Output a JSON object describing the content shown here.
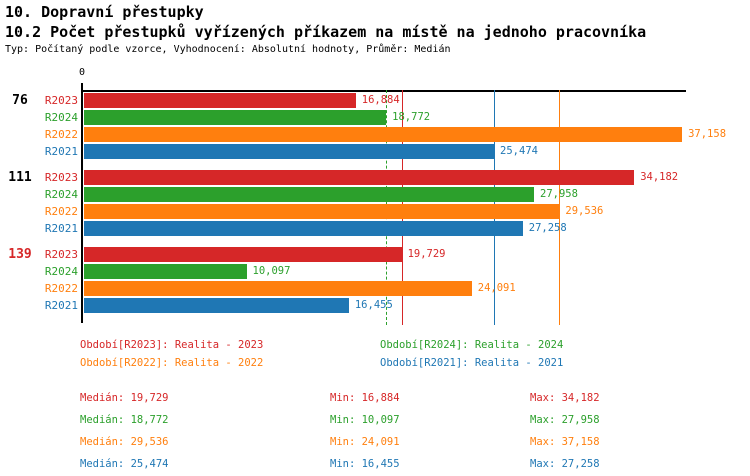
{
  "header": {
    "title": "10. Dopravní přestupky",
    "subtitle": "10.2 Počet přestupků vyřízených příkazem na místě na jednoho pracovníka",
    "meta": "Typ: Počítaný podle vzorce, Vyhodnocení: Absolutní hodnoty, Průměr: Medián"
  },
  "chart_data": {
    "type": "bar",
    "orientation": "horizontal",
    "title": "10.2 Počet přestupků vyřízených příkazem na místě na jednoho pracovníka",
    "x_axis": {
      "origin_label": "0",
      "max": 37400,
      "gridlines": false
    },
    "series_colors": {
      "R2023": "#d62728",
      "R2024": "#2ca02c",
      "R2022": "#ff7f0e",
      "R2021": "#1f77b4"
    },
    "series_order": [
      "R2023",
      "R2024",
      "R2022",
      "R2021"
    ],
    "groups": [
      {
        "label": "76",
        "label_color": "#000000",
        "bars": [
          {
            "series": "R2023",
            "value": 16884
          },
          {
            "series": "R2024",
            "value": 18772
          },
          {
            "series": "R2022",
            "value": 37158
          },
          {
            "series": "R2021",
            "value": 25474
          }
        ]
      },
      {
        "label": "111",
        "label_color": "#000000",
        "bars": [
          {
            "series": "R2023",
            "value": 34182
          },
          {
            "series": "R2024",
            "value": 27958
          },
          {
            "series": "R2022",
            "value": 29536
          },
          {
            "series": "R2021",
            "value": 27258
          }
        ]
      },
      {
        "label": "139",
        "label_color": "#d62728",
        "bars": [
          {
            "series": "R2023",
            "value": 19729
          },
          {
            "series": "R2024",
            "value": 10097
          },
          {
            "series": "R2022",
            "value": 24091
          },
          {
            "series": "R2021",
            "value": 16455
          }
        ]
      }
    ],
    "median_lines": [
      {
        "series": "R2023",
        "value": 19729,
        "style": "solid"
      },
      {
        "series": "R2024",
        "value": 18772,
        "style": "dashed"
      },
      {
        "series": "R2022",
        "value": 29536,
        "style": "solid"
      },
      {
        "series": "R2021",
        "value": 25474,
        "style": "solid"
      }
    ]
  },
  "legend": [
    {
      "series": "R2023",
      "label": "Období[R2023]: Realita - 2023",
      "col": 0,
      "row": 0
    },
    {
      "series": "R2024",
      "label": "Období[R2024]: Realita - 2024",
      "col": 1,
      "row": 0
    },
    {
      "series": "R2022",
      "label": "Období[R2022]: Realita - 2022",
      "col": 0,
      "row": 1
    },
    {
      "series": "R2021",
      "label": "Období[R2021]: Realita - 2021",
      "col": 1,
      "row": 1
    }
  ],
  "stats": [
    {
      "series": "R2023",
      "median": "Medián: 19,729",
      "min": "Min: 16,884",
      "max": "Max: 34,182"
    },
    {
      "series": "R2024",
      "median": "Medián: 18,772",
      "min": "Min: 10,097",
      "max": "Max: 27,958"
    },
    {
      "series": "R2022",
      "median": "Medián: 29,536",
      "min": "Min: 24,091",
      "max": "Max: 37,158"
    },
    {
      "series": "R2021",
      "median": "Medián: 25,474",
      "min": "Min: 16,455",
      "max": "Max: 27,258"
    }
  ]
}
